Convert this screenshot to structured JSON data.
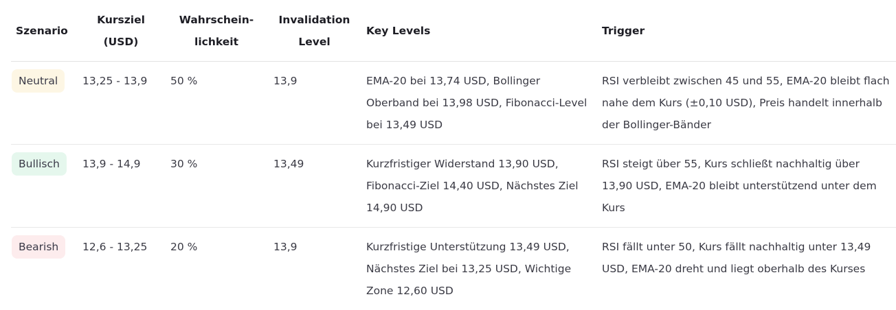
{
  "headers": {
    "scenario": "Szenario",
    "target_line1": "Kursziel",
    "target_line2": "(USD)",
    "probability_line1": "Wahrschein-",
    "probability_line2": "lichkeit",
    "invalidation_line1": "Invalidation",
    "invalidation_line2": "Level",
    "key_levels": "Key Levels",
    "trigger": "Trigger"
  },
  "rows": [
    {
      "scenario": "Neutral",
      "badge_color": "#fdf6e4",
      "target": "13,25 - 13,9",
      "probability": "50 %",
      "invalidation": "13,9",
      "key_levels": "EMA-20 bei 13,74 USD, Bollinger Oberband bei 13,98 USD, Fibonacci-Level bei 13,49 USD",
      "trigger": "RSI verbleibt zwischen 45 und 55, EMA-20 bleibt flach nahe dem Kurs (±0,10 USD), Preis handelt innerhalb der Bollinger-Bänder"
    },
    {
      "scenario": "Bullisch",
      "badge_color": "#e5f7ed",
      "target": "13,9 - 14,9",
      "probability": "30 %",
      "invalidation": "13,49",
      "key_levels": "Kurzfristiger Widerstand 13,90 USD, Fibonacci-Ziel 14,40 USD, Nächstes Ziel 14,90 USD",
      "trigger": "RSI steigt über 55, Kurs schließt nachhaltig über 13,90 USD, EMA-20 bleibt unterstützend unter dem Kurs"
    },
    {
      "scenario": "Bearish",
      "badge_color": "#fdeced",
      "target": "12,6 - 13,25",
      "probability": "20 %",
      "invalidation": "13,9",
      "key_levels": "Kurzfristige Unterstützung 13,49 USD, Nächstes Ziel bei 13,25 USD, Wichtige Zone 12,60 USD",
      "trigger": "RSI fällt unter 50, Kurs fällt nachhaltig unter 13,49 USD, EMA-20 dreht und liegt oberhalb des Kurses"
    }
  ]
}
